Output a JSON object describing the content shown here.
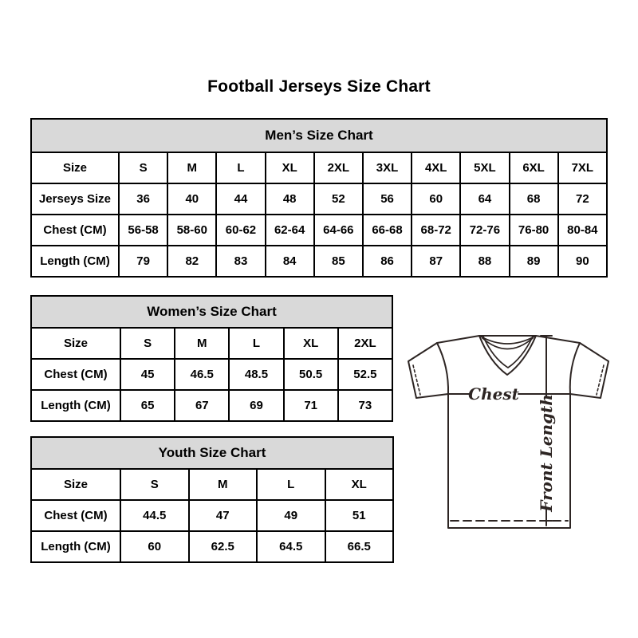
{
  "page": {
    "title": "Football Jerseys Size Chart"
  },
  "tables": {
    "mens": {
      "title": "Men’s Size Chart",
      "rows": [
        {
          "label": "Size",
          "cells": [
            "S",
            "M",
            "L",
            "XL",
            "2XL",
            "3XL",
            "4XL",
            "5XL",
            "6XL",
            "7XL"
          ]
        },
        {
          "label": "Jerseys Size",
          "cells": [
            "36",
            "40",
            "44",
            "48",
            "52",
            "56",
            "60",
            "64",
            "68",
            "72"
          ]
        },
        {
          "label": "Chest (CM)",
          "cells": [
            "56-58",
            "58-60",
            "60-62",
            "62-64",
            "64-66",
            "66-68",
            "68-72",
            "72-76",
            "76-80",
            "80-84"
          ]
        },
        {
          "label": "Length (CM)",
          "cells": [
            "79",
            "82",
            "83",
            "84",
            "85",
            "86",
            "87",
            "88",
            "89",
            "90"
          ]
        }
      ]
    },
    "womens": {
      "title": "Women’s Size Chart",
      "rows": [
        {
          "label": "Size",
          "cells": [
            "S",
            "M",
            "L",
            "XL",
            "2XL"
          ]
        },
        {
          "label": "Chest (CM)",
          "cells": [
            "45",
            "46.5",
            "48.5",
            "50.5",
            "52.5"
          ]
        },
        {
          "label": "Length (CM)",
          "cells": [
            "65",
            "67",
            "69",
            "71",
            "73"
          ]
        }
      ]
    },
    "youth": {
      "title": "Youth Size Chart",
      "rows": [
        {
          "label": "Size",
          "cells": [
            "S",
            "M",
            "L",
            "XL"
          ]
        },
        {
          "label": "Chest (CM)",
          "cells": [
            "44.5",
            "47",
            "49",
            "51"
          ]
        },
        {
          "label": "Length (CM)",
          "cells": [
            "60",
            "62.5",
            "64.5",
            "66.5"
          ]
        }
      ]
    }
  },
  "diagram": {
    "chest_label": "Chest",
    "front_length_label": "Front Length"
  },
  "colors": {
    "table_header_bg": "#d9d9d9",
    "table_border": "#000000",
    "diagram_line": "#2d2523"
  }
}
